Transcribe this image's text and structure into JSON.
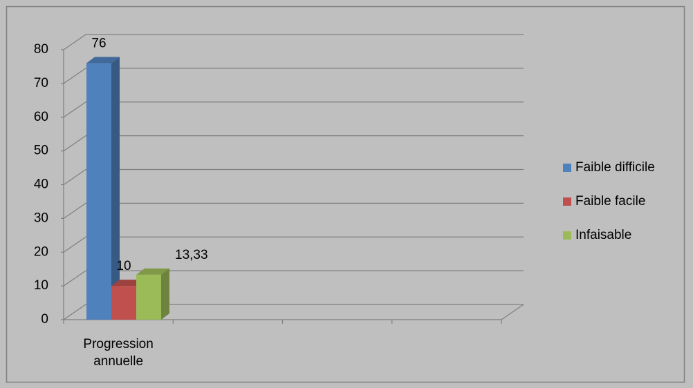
{
  "chart_data": {
    "type": "bar3d",
    "categories": [
      "Progression annuelle",
      null,
      null,
      null
    ],
    "series": [
      {
        "name": "Faible difficile",
        "color": "#4f81bd",
        "values": [
          76,
          null,
          null,
          null
        ]
      },
      {
        "name": "Faible facile",
        "color": "#c0504d",
        "values": [
          10,
          null,
          null,
          null
        ]
      },
      {
        "name": "Infaisable",
        "color": "#9bbb59",
        "values": [
          13.33,
          null,
          null,
          null
        ],
        "value_labels": [
          "13,33",
          null,
          null,
          null
        ]
      }
    ],
    "ylim": [
      0,
      80
    ],
    "yticks": [
      0,
      10,
      20,
      30,
      40,
      50,
      60,
      70,
      80
    ],
    "grid": true,
    "legend": "right"
  }
}
